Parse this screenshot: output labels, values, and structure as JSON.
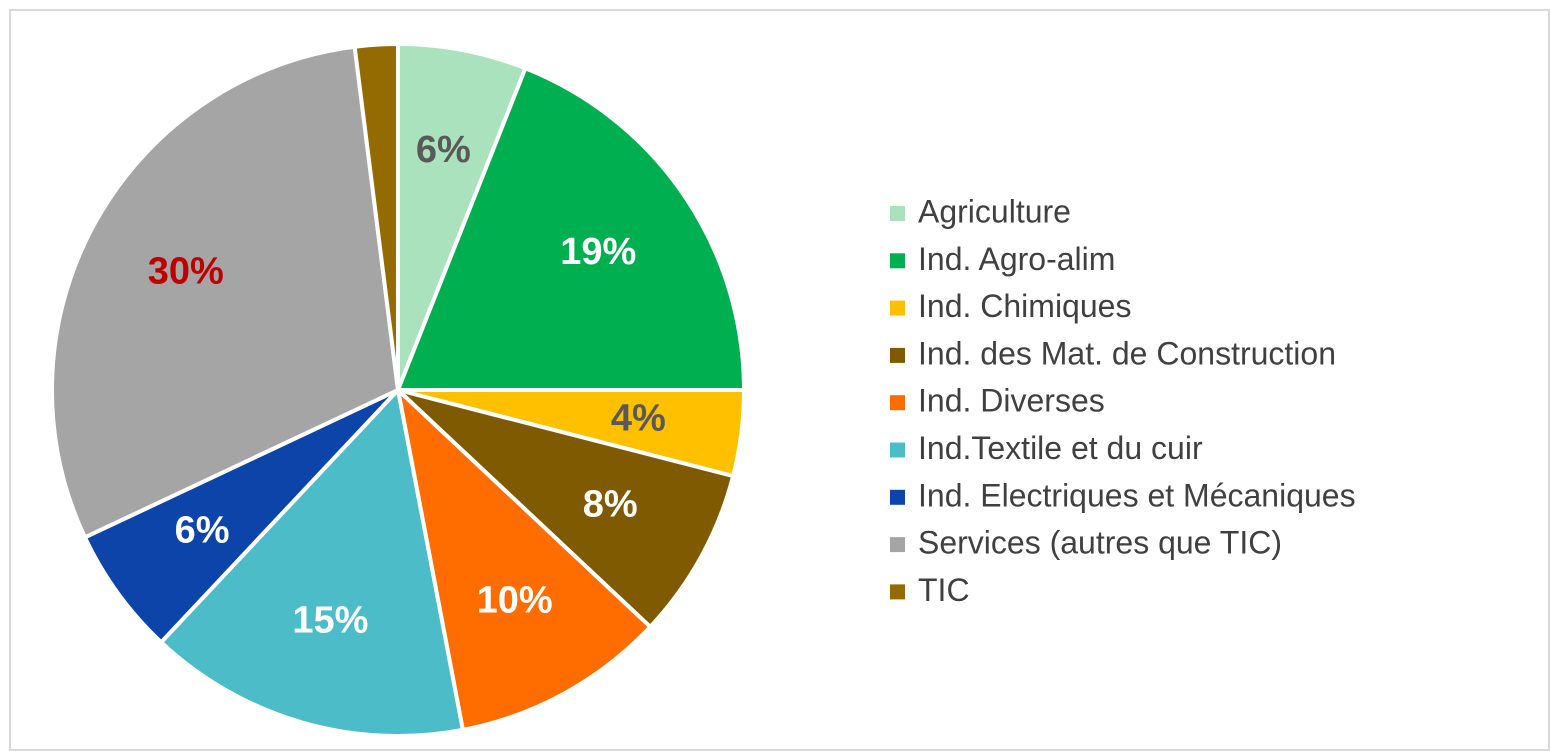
{
  "chart_data": {
    "type": "pie",
    "categories": [
      "Agriculture",
      "Ind. Agro-alim",
      "Ind. Chimiques",
      "Ind. des Mat. de Construction",
      "Ind. Diverses",
      "Ind.Textile et du cuir",
      "Ind. Electriques et Mécaniques",
      "Services (autres que TIC)",
      "TIC"
    ],
    "values": [
      6,
      19,
      4,
      8,
      10,
      15,
      6,
      30,
      2
    ],
    "value_labels": [
      "6%",
      "19%",
      "4%",
      "8%",
      "10%",
      "15%",
      "6%",
      "30%",
      null
    ],
    "colors": [
      "#a9e2bd",
      "#00b050",
      "#ffc000",
      "#7f5a00",
      "#ff6d00",
      "#4bbcc8",
      "#0d44aa",
      "#a5a5a5",
      "#946b00"
    ],
    "label_colors": [
      "#595959",
      "#ffffff",
      "#595959",
      "#ffffff",
      "#ffffff",
      "#ffffff",
      "#ffffff",
      "#c00000",
      null
    ],
    "legend": "right"
  }
}
